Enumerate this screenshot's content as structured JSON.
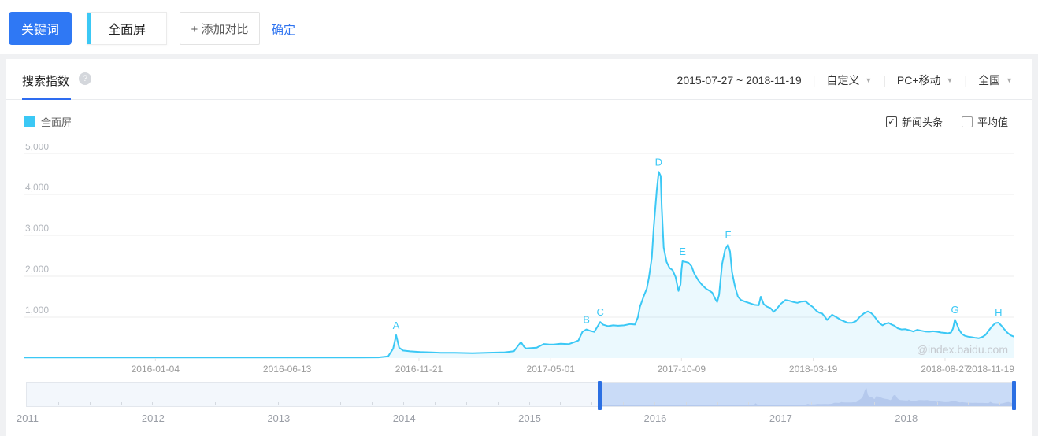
{
  "toolbar": {
    "keyword_button": "关键词",
    "keyword_tab": "全面屏",
    "add_compare": "+ 添加对比",
    "confirm": "确定"
  },
  "panel": {
    "tab": "搜索指数",
    "help_icon": "?",
    "date_range": "2015-07-27 ~ 2018-11-19",
    "range_type": "自定义",
    "device": "PC+移动",
    "region": "全国",
    "legend": {
      "label": "全面屏",
      "color": "#3bc8f5"
    },
    "checkboxes": [
      {
        "label": "新闻头条",
        "checked": true
      },
      {
        "label": "平均值",
        "checked": false
      }
    ],
    "watermark": "@index.baidu.com"
  },
  "colors": {
    "accent_blue": "#2f74f0",
    "line_cyan": "#3bc8f5",
    "grid": "#ededed",
    "axis_text": "#b3b7bd",
    "x_text": "#9b9b9b",
    "slider_handle": "#2b6fe3",
    "slider_selection": "#c9dbf7"
  },
  "chart_data": {
    "type": "area",
    "series_name": "全面屏",
    "x_range": [
      "2015-07-27",
      "2018-11-19"
    ],
    "ylim": [
      0,
      5000
    ],
    "grid": true,
    "y_ticks": [
      {
        "label": "1,000",
        "value": 1000
      },
      {
        "label": "2,000",
        "value": 2000
      },
      {
        "label": "3,000",
        "value": 3000
      },
      {
        "label": "4,000",
        "value": 4000
      },
      {
        "label": "5,000",
        "value": 5000
      }
    ],
    "x_ticks": [
      {
        "label": "2016-01-04",
        "f": 0.133
      },
      {
        "label": "2016-06-13",
        "f": 0.266
      },
      {
        "label": "2016-11-21",
        "f": 0.399
      },
      {
        "label": "2017-05-01",
        "f": 0.532
      },
      {
        "label": "2017-10-09",
        "f": 0.664
      },
      {
        "label": "2018-03-19",
        "f": 0.797
      },
      {
        "label": "2018-08-27",
        "f": 0.93
      },
      {
        "label": "2018-11-19",
        "f": 1.0
      }
    ],
    "markers": [
      {
        "label": "A",
        "f": 0.376,
        "v": 560
      },
      {
        "label": "B",
        "f": 0.568,
        "v": 700
      },
      {
        "label": "C",
        "f": 0.582,
        "v": 880
      },
      {
        "label": "D",
        "f": 0.641,
        "v": 4550
      },
      {
        "label": "E",
        "f": 0.665,
        "v": 2365
      },
      {
        "label": "F",
        "f": 0.711,
        "v": 2770
      },
      {
        "label": "G",
        "f": 0.94,
        "v": 940
      },
      {
        "label": "H",
        "f": 0.984,
        "v": 865
      }
    ],
    "points": [
      [
        0,
        15
      ],
      [
        0.05,
        15
      ],
      [
        0.1,
        15
      ],
      [
        0.15,
        15
      ],
      [
        0.2,
        15
      ],
      [
        0.25,
        15
      ],
      [
        0.3,
        15
      ],
      [
        0.34,
        15
      ],
      [
        0.358,
        18
      ],
      [
        0.368,
        45
      ],
      [
        0.373,
        230
      ],
      [
        0.376,
        560
      ],
      [
        0.379,
        255
      ],
      [
        0.383,
        185
      ],
      [
        0.39,
        165
      ],
      [
        0.4,
        150
      ],
      [
        0.412,
        140
      ],
      [
        0.421,
        130
      ],
      [
        0.435,
        128
      ],
      [
        0.453,
        122
      ],
      [
        0.47,
        132
      ],
      [
        0.485,
        140
      ],
      [
        0.495,
        170
      ],
      [
        0.5,
        330
      ],
      [
        0.502,
        390
      ],
      [
        0.505,
        280
      ],
      [
        0.507,
        235
      ],
      [
        0.512,
        245
      ],
      [
        0.518,
        255
      ],
      [
        0.525,
        345
      ],
      [
        0.53,
        335
      ],
      [
        0.535,
        330
      ],
      [
        0.542,
        350
      ],
      [
        0.55,
        340
      ],
      [
        0.556,
        390
      ],
      [
        0.56,
        430
      ],
      [
        0.564,
        640
      ],
      [
        0.568,
        700
      ],
      [
        0.572,
        665
      ],
      [
        0.576,
        640
      ],
      [
        0.58,
        800
      ],
      [
        0.582,
        880
      ],
      [
        0.585,
        815
      ],
      [
        0.59,
        780
      ],
      [
        0.595,
        800
      ],
      [
        0.6,
        790
      ],
      [
        0.606,
        800
      ],
      [
        0.612,
        830
      ],
      [
        0.617,
        820
      ],
      [
        0.62,
        1000
      ],
      [
        0.622,
        1250
      ],
      [
        0.626,
        1520
      ],
      [
        0.629,
        1700
      ],
      [
        0.631,
        1950
      ],
      [
        0.634,
        2450
      ],
      [
        0.636,
        3200
      ],
      [
        0.639,
        4100
      ],
      [
        0.641,
        4550
      ],
      [
        0.643,
        4450
      ],
      [
        0.644,
        3700
      ],
      [
        0.646,
        2700
      ],
      [
        0.649,
        2350
      ],
      [
        0.652,
        2200
      ],
      [
        0.655,
        2150
      ],
      [
        0.658,
        1980
      ],
      [
        0.66,
        1750
      ],
      [
        0.661,
        1640
      ],
      [
        0.663,
        1800
      ],
      [
        0.664,
        2150
      ],
      [
        0.665,
        2365
      ],
      [
        0.668,
        2350
      ],
      [
        0.671,
        2330
      ],
      [
        0.674,
        2250
      ],
      [
        0.677,
        2060
      ],
      [
        0.681,
        1900
      ],
      [
        0.685,
        1780
      ],
      [
        0.689,
        1690
      ],
      [
        0.692,
        1650
      ],
      [
        0.695,
        1600
      ],
      [
        0.698,
        1450
      ],
      [
        0.7,
        1370
      ],
      [
        0.702,
        1550
      ],
      [
        0.705,
        2300
      ],
      [
        0.708,
        2650
      ],
      [
        0.711,
        2770
      ],
      [
        0.713,
        2600
      ],
      [
        0.715,
        2100
      ],
      [
        0.718,
        1750
      ],
      [
        0.721,
        1500
      ],
      [
        0.724,
        1420
      ],
      [
        0.728,
        1380
      ],
      [
        0.733,
        1340
      ],
      [
        0.738,
        1300
      ],
      [
        0.742,
        1290
      ],
      [
        0.744,
        1500
      ],
      [
        0.747,
        1320
      ],
      [
        0.75,
        1260
      ],
      [
        0.754,
        1220
      ],
      [
        0.757,
        1130
      ],
      [
        0.76,
        1200
      ],
      [
        0.764,
        1320
      ],
      [
        0.769,
        1420
      ],
      [
        0.773,
        1400
      ],
      [
        0.777,
        1370
      ],
      [
        0.781,
        1350
      ],
      [
        0.785,
        1380
      ],
      [
        0.789,
        1390
      ],
      [
        0.793,
        1310
      ],
      [
        0.797,
        1240
      ],
      [
        0.8,
        1160
      ],
      [
        0.803,
        1110
      ],
      [
        0.806,
        1090
      ],
      [
        0.809,
        1000
      ],
      [
        0.811,
        930
      ],
      [
        0.814,
        1010
      ],
      [
        0.816,
        1060
      ],
      [
        0.819,
        1020
      ],
      [
        0.821,
        990
      ],
      [
        0.825,
        930
      ],
      [
        0.828,
        900
      ],
      [
        0.832,
        860
      ],
      [
        0.836,
        860
      ],
      [
        0.84,
        900
      ],
      [
        0.844,
        1010
      ],
      [
        0.848,
        1090
      ],
      [
        0.852,
        1140
      ],
      [
        0.855,
        1110
      ],
      [
        0.858,
        1040
      ],
      [
        0.861,
        940
      ],
      [
        0.864,
        850
      ],
      [
        0.867,
        800
      ],
      [
        0.87,
        840
      ],
      [
        0.873,
        860
      ],
      [
        0.876,
        820
      ],
      [
        0.879,
        790
      ],
      [
        0.882,
        730
      ],
      [
        0.886,
        700
      ],
      [
        0.89,
        705
      ],
      [
        0.894,
        680
      ],
      [
        0.898,
        650
      ],
      [
        0.902,
        690
      ],
      [
        0.906,
        670
      ],
      [
        0.91,
        650
      ],
      [
        0.914,
        645
      ],
      [
        0.918,
        655
      ],
      [
        0.922,
        645
      ],
      [
        0.926,
        625
      ],
      [
        0.93,
        615
      ],
      [
        0.933,
        605
      ],
      [
        0.936,
        625
      ],
      [
        0.938,
        720
      ],
      [
        0.94,
        940
      ],
      [
        0.942,
        830
      ],
      [
        0.944,
        700
      ],
      [
        0.947,
        590
      ],
      [
        0.95,
        545
      ],
      [
        0.953,
        525
      ],
      [
        0.957,
        510
      ],
      [
        0.961,
        495
      ],
      [
        0.964,
        485
      ],
      [
        0.968,
        520
      ],
      [
        0.971,
        570
      ],
      [
        0.975,
        700
      ],
      [
        0.978,
        790
      ],
      [
        0.981,
        855
      ],
      [
        0.984,
        865
      ],
      [
        0.987,
        790
      ],
      [
        0.99,
        700
      ],
      [
        0.993,
        620
      ],
      [
        0.996,
        560
      ],
      [
        1,
        520
      ]
    ]
  },
  "slider": {
    "years": [
      "2011",
      "2012",
      "2013",
      "2014",
      "2015",
      "2016",
      "2017",
      "2018"
    ],
    "total_years": 7.88,
    "selection_start_f": 0.5796,
    "selection_end_f": 1.0
  }
}
